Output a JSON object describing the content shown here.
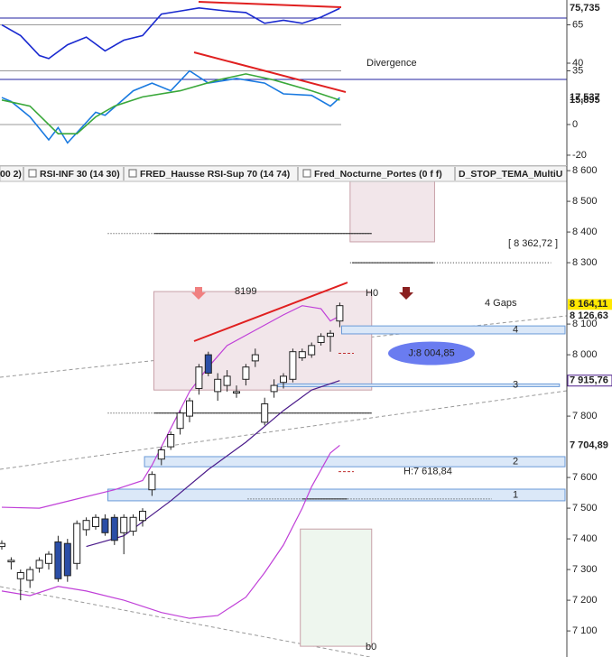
{
  "chart_data": {
    "type": "candlestick",
    "tabs": [
      "00 2)",
      "RSI-INF 30  (14 30)",
      "FRED_Hausse RSI-Sup 70 (14 74)",
      "Fred_Nocturne_Portes (0 f f)",
      "D_STOP_TEMA_MultiU"
    ],
    "ylim": [
      7015,
      8612
    ],
    "yticks": [
      {
        "value": 8600,
        "label": "8 600"
      },
      {
        "value": 8500,
        "label": "8 500"
      },
      {
        "value": 8400,
        "label": "8 400"
      },
      {
        "value": 8300,
        "label": "8 300"
      },
      {
        "value": 8100,
        "label": "8 100"
      },
      {
        "value": 8000,
        "label": "8 000"
      },
      {
        "value": 7800,
        "label": "7 800"
      },
      {
        "value": 7600,
        "label": "7 600"
      },
      {
        "value": 7500,
        "label": "7 500"
      },
      {
        "value": 7400,
        "label": "7 400"
      },
      {
        "value": 7300,
        "label": "7 300"
      },
      {
        "value": 7200,
        "label": "7 200"
      },
      {
        "value": 7100,
        "label": "7 100"
      }
    ],
    "up_color": "#ffffff",
    "down_color": "#2b4ea6",
    "candles": {
      "open": [
        7375,
        7325,
        7270,
        7265,
        7305,
        7320,
        7390,
        7385,
        7320,
        7430,
        7440,
        7465,
        7470,
        7420,
        7425,
        7460,
        7560,
        7660,
        7700,
        7760,
        7800,
        7890,
        8000,
        7880,
        7900,
        7875,
        7920,
        7980,
        7780,
        7880,
        7910,
        7920,
        7990,
        8000,
        8040,
        8060,
        8110
      ],
      "high": [
        7395,
        7340,
        7300,
        7310,
        7340,
        7360,
        7410,
        7400,
        7460,
        7470,
        7480,
        7480,
        7480,
        7480,
        7480,
        7500,
        7620,
        7700,
        7750,
        7820,
        7860,
        7970,
        8010,
        7940,
        7950,
        7900,
        7970,
        8020,
        7860,
        7920,
        7940,
        8020,
        8020,
        8040,
        8070,
        8080,
        8170
      ],
      "low": [
        7365,
        7300,
        7200,
        7240,
        7290,
        7300,
        7260,
        7260,
        7300,
        7410,
        7430,
        7410,
        7380,
        7350,
        7410,
        7440,
        7540,
        7640,
        7690,
        7740,
        7780,
        7870,
        7930,
        7850,
        7880,
        7860,
        7900,
        7960,
        7770,
        7860,
        7890,
        7910,
        7980,
        7990,
        8030,
        8010,
        8090
      ],
      "close": [
        7385,
        7330,
        7290,
        7300,
        7330,
        7350,
        7270,
        7280,
        7450,
        7460,
        7470,
        7420,
        7395,
        7470,
        7470,
        7490,
        7610,
        7690,
        7740,
        7810,
        7850,
        7960,
        7940,
        7920,
        7930,
        7880,
        7960,
        8000,
        7840,
        7900,
        7930,
        8010,
        8010,
        8030,
        8060,
        8070,
        8160
      ]
    },
    "overlays": [
      {
        "color": "#c040d8",
        "x": [
          0,
          4,
          8,
          12,
          15,
          16,
          18,
          20,
          22,
          24,
          27,
          30,
          32,
          34,
          35,
          36
        ],
        "values": [
          7503,
          7500,
          7530,
          7560,
          7590,
          7640,
          7760,
          7880,
          7960,
          8030,
          8080,
          8130,
          8160,
          8150,
          8110,
          8126.63
        ],
        "last": {
          "value": 8126.63,
          "label": "8 126,63"
        }
      },
      {
        "color": "#4a1a8a",
        "x": [
          9,
          13,
          18,
          22,
          26,
          30,
          33,
          36
        ],
        "values": [
          7375,
          7410,
          7524,
          7626,
          7715,
          7818,
          7885,
          7915.76
        ],
        "last": {
          "value": 7915.76,
          "label": "7 915,76"
        }
      },
      {
        "color": "#c040d8",
        "x": [
          0,
          3,
          6,
          9,
          13,
          17,
          20,
          23,
          26,
          28,
          30,
          32,
          33,
          35,
          36
        ],
        "values": [
          7230,
          7215,
          7245,
          7230,
          7200,
          7160,
          7141,
          7150,
          7210,
          7290,
          7380,
          7500,
          7570,
          7680,
          7704.89
        ],
        "last": {
          "value": 7704.89,
          "label": "7 704,89"
        }
      }
    ],
    "last_price": {
      "value": 8164.11,
      "label": "8 164,11"
    },
    "zones": [
      {
        "low": 7885,
        "high": 8206,
        "x": [
          16.2,
          39.4
        ],
        "color": "#f2e6ea"
      },
      {
        "low": 8368,
        "high": 8568,
        "x": [
          37.1,
          46.1
        ],
        "color": "#f2e6ea"
      },
      {
        "low": 7050,
        "high": 7432,
        "x": [
          31.8,
          39.4
        ],
        "color": "#eef6ee"
      }
    ],
    "gaps": [
      {
        "label": "4",
        "low": 8068,
        "high": 8094,
        "x": [
          36.2,
          60
        ]
      },
      {
        "label": "3",
        "low": 7897,
        "high": 7905,
        "x": [
          29.4,
          59.4
        ]
      },
      {
        "label": "2",
        "low": 7635,
        "high": 7668,
        "x": [
          15.2,
          60
        ]
      },
      {
        "label": "1",
        "low": 7524,
        "high": 7562,
        "x": [
          11.3,
          60
        ]
      }
    ],
    "levels": [
      {
        "value": 8395,
        "dotted": [
          11.3,
          39.4
        ],
        "solid": [
          16.2,
          39.4
        ]
      },
      {
        "value": 8300,
        "dotted": [
          37.1,
          58.5
        ],
        "solid": [
          37.3,
          46
        ]
      },
      {
        "value": 7810,
        "dotted": [
          11.3,
          39.4
        ],
        "solid": [
          16.2,
          39.4
        ]
      },
      {
        "value": 7530,
        "dotted": [
          26.2,
          52.2
        ],
        "solid": [
          32,
          36.8
        ]
      }
    ],
    "markers": [
      {
        "value": 8004.85,
        "label": "J:8 004,85"
      },
      {
        "value": 7618.84,
        "label": "H:7 618,84"
      }
    ],
    "annotations": [
      "Divergence",
      "8199",
      "H0",
      "b0",
      "4 Gaps",
      "[ 8 362,72 ]"
    ],
    "oscillator": {
      "ylim": [
        -26.5,
        81.2
      ],
      "yticks": [
        65,
        40,
        35,
        0,
        -20
      ],
      "levels": [
        {
          "value": 65,
          "color": "#9a9a9a"
        },
        {
          "value": 35,
          "color": "#9a9a9a"
        },
        {
          "value": 0,
          "color": "#9a9a9a"
        },
        {
          "value": 69.4,
          "color": "#2020a0"
        },
        {
          "value": 29.4,
          "color": "#2020a0"
        }
      ],
      "series": [
        {
          "color": "#1a2ad0",
          "x": [
            0,
            2,
            4,
            5,
            7,
            9,
            11,
            13,
            15,
            17,
            19,
            21,
            24,
            26,
            28,
            30,
            32,
            34,
            36
          ],
          "values": [
            65,
            58,
            45,
            43,
            52,
            57,
            48,
            55,
            58,
            72,
            74,
            76,
            74,
            73,
            66,
            68,
            66,
            70,
            75.735
          ],
          "last": {
            "value": 75.735,
            "label": "75,735"
          }
        },
        {
          "color": "#1a7ae0",
          "x": [
            0,
            1,
            3,
            5,
            6,
            7,
            10,
            11,
            14,
            16,
            18,
            20,
            22,
            25,
            28,
            30,
            33,
            35,
            36
          ],
          "values": [
            17.6,
            15,
            5,
            -10,
            -2,
            -12,
            8,
            6,
            22,
            27,
            22,
            35,
            27,
            30,
            27,
            20,
            19,
            12,
            17.537
          ],
          "last": {
            "value": 17.537,
            "label": "17,537"
          }
        },
        {
          "color": "#3aa83a",
          "x": [
            0,
            3,
            6,
            8,
            10,
            12,
            15,
            19,
            23,
            26,
            29,
            33,
            36
          ],
          "values": [
            16,
            12,
            -6,
            -6,
            5,
            12,
            18,
            22,
            29,
            33,
            29,
            22,
            15.895
          ],
          "last": {
            "value": 15.895,
            "label": "15,895"
          }
        }
      ]
    }
  }
}
